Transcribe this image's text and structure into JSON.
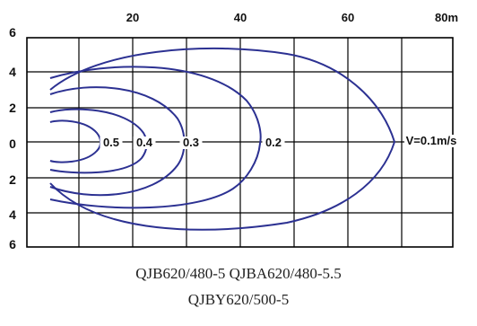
{
  "x_ticks": [
    "20",
    "40",
    "60",
    "80m"
  ],
  "y_ticks": [
    "6",
    "4",
    "2",
    "0",
    "2",
    "4",
    "6"
  ],
  "curves": [
    {
      "label": "0.5",
      "reach_m": 12
    },
    {
      "label": "0.4",
      "reach_m": 20
    },
    {
      "label": "0.3",
      "reach_m": 28
    },
    {
      "label": "0.2",
      "reach_m": 45
    },
    {
      "label": "V=0.1m/s",
      "reach_m": 70
    }
  ],
  "models": {
    "line1": "QJB620/480-5  QJBA620/480-5.5",
    "line2": "QJBY620/500-5"
  },
  "colors": {
    "curve": "#2c3192",
    "grid": "#000000"
  }
}
